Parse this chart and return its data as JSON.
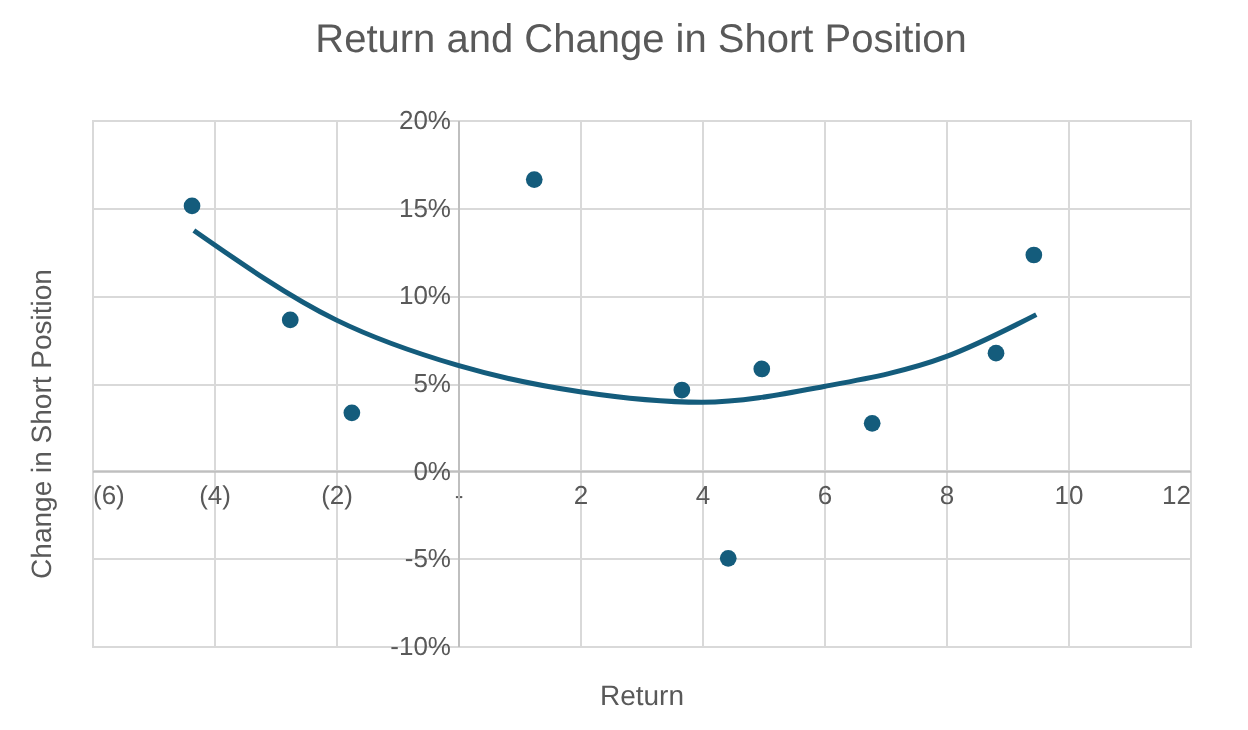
{
  "chart_data": {
    "type": "scatter",
    "title": "Return and Change in Short Position",
    "xlabel": "Return",
    "ylabel": "Change in Short Position",
    "xlim": [
      -6,
      12
    ],
    "xticks": [
      {
        "value": -6,
        "label": "(6)"
      },
      {
        "value": -4,
        "label": "(4)"
      },
      {
        "value": -2,
        "label": "(2)"
      },
      {
        "value": 0,
        "label": "-"
      },
      2,
      4,
      6,
      8,
      10,
      12
    ],
    "ylim": [
      -10,
      20
    ],
    "yticks": [
      {
        "value": -10,
        "label": "-10%"
      },
      {
        "value": -5,
        "label": "-5%"
      },
      {
        "value": 0,
        "label": "0%"
      },
      {
        "value": 5,
        "label": "5%"
      },
      {
        "value": 10,
        "label": "10%"
      },
      {
        "value": 15,
        "label": "15%"
      },
      {
        "value": 20,
        "label": "20%"
      }
    ],
    "grid": true,
    "series": [
      {
        "marker": "circle",
        "color": "#145c7c",
        "x": [
          -4.36,
          -2.75,
          -1.74,
          1.25,
          3.67,
          4.43,
          4.98,
          6.79,
          8.82,
          9.44
        ],
        "values": [
          15.1,
          8.6,
          3.3,
          16.6,
          4.6,
          -5.0,
          5.8,
          2.7,
          6.7,
          12.3
        ]
      },
      {
        "type": "line",
        "color": "#145c7c",
        "line_style": "solid",
        "x": [
          -4.33,
          -2,
          0,
          2,
          4,
          6,
          8,
          9.48
        ],
        "values": [
          13.7,
          8.6,
          6.0,
          4.5,
          3.9,
          4.8,
          6.5,
          8.9
        ]
      }
    ]
  }
}
